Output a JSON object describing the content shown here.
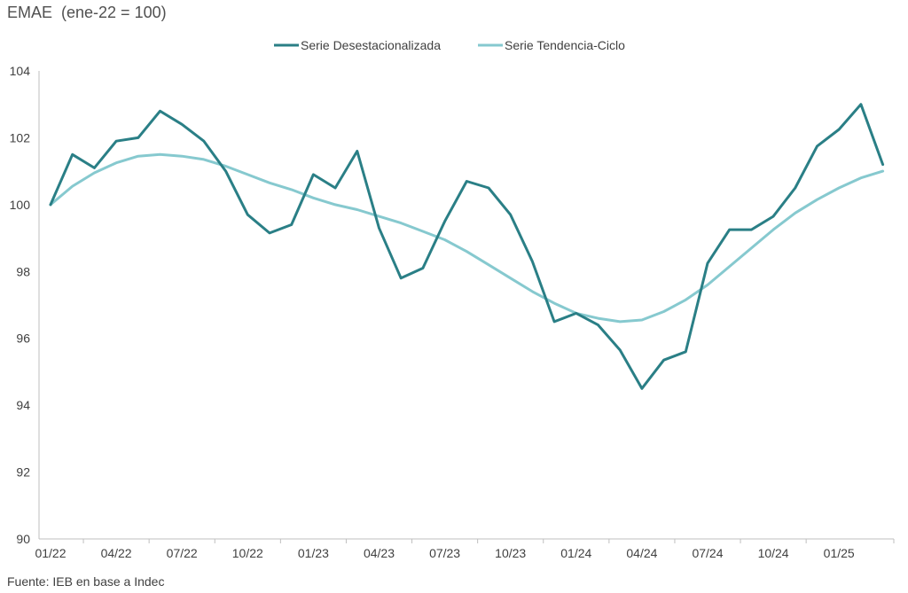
{
  "chart_data": {
    "type": "line",
    "title": "EMAE  (ene-22 = 100)",
    "source": "Fuente: IEB en base a Indec",
    "xlabel": "",
    "ylabel": "",
    "ylim": [
      90,
      104
    ],
    "yticks": [
      "90",
      "92",
      "94",
      "96",
      "98",
      "100",
      "102",
      "104"
    ],
    "xtick_labels": [
      "01/22",
      "04/22",
      "07/22",
      "10/22",
      "01/23",
      "04/23",
      "07/23",
      "10/23",
      "01/24",
      "04/24",
      "07/24",
      "10/24",
      "01/25"
    ],
    "x": [
      "01/22",
      "02/22",
      "03/22",
      "04/22",
      "05/22",
      "06/22",
      "07/22",
      "08/22",
      "09/22",
      "10/22",
      "11/22",
      "12/22",
      "01/23",
      "02/23",
      "03/23",
      "04/23",
      "05/23",
      "06/23",
      "07/23",
      "08/23",
      "09/23",
      "10/23",
      "11/23",
      "12/23",
      "01/24",
      "02/24",
      "03/24",
      "04/24",
      "05/24",
      "06/24",
      "07/24",
      "08/24",
      "09/24",
      "10/24",
      "11/24",
      "12/24",
      "01/25",
      "02/25",
      "03/25"
    ],
    "legend_position": "top-center",
    "grid": false,
    "series": [
      {
        "name": "Serie Desestacionalizada",
        "color": "#2a7f86",
        "values": [
          100.0,
          101.5,
          101.1,
          101.9,
          102.0,
          102.8,
          102.4,
          101.9,
          101.0,
          99.7,
          99.15,
          99.4,
          100.9,
          100.5,
          101.6,
          99.3,
          97.8,
          98.1,
          99.5,
          100.7,
          100.5,
          99.7,
          98.3,
          96.5,
          96.75,
          96.4,
          95.65,
          94.5,
          95.35,
          95.6,
          98.25,
          99.25,
          99.25,
          99.65,
          100.5,
          101.75,
          102.25,
          103.0,
          101.2
        ]
      },
      {
        "name": "Serie Tendencia-Ciclo",
        "color": "#86c9cf",
        "values": [
          100.0,
          100.55,
          100.95,
          101.25,
          101.45,
          101.5,
          101.45,
          101.35,
          101.15,
          100.9,
          100.65,
          100.45,
          100.2,
          100.0,
          99.85,
          99.65,
          99.45,
          99.2,
          98.95,
          98.6,
          98.2,
          97.8,
          97.4,
          97.05,
          96.75,
          96.6,
          96.5,
          96.55,
          96.8,
          97.15,
          97.6,
          98.15,
          98.7,
          99.25,
          99.75,
          100.15,
          100.5,
          100.8,
          101.0
        ]
      }
    ]
  }
}
